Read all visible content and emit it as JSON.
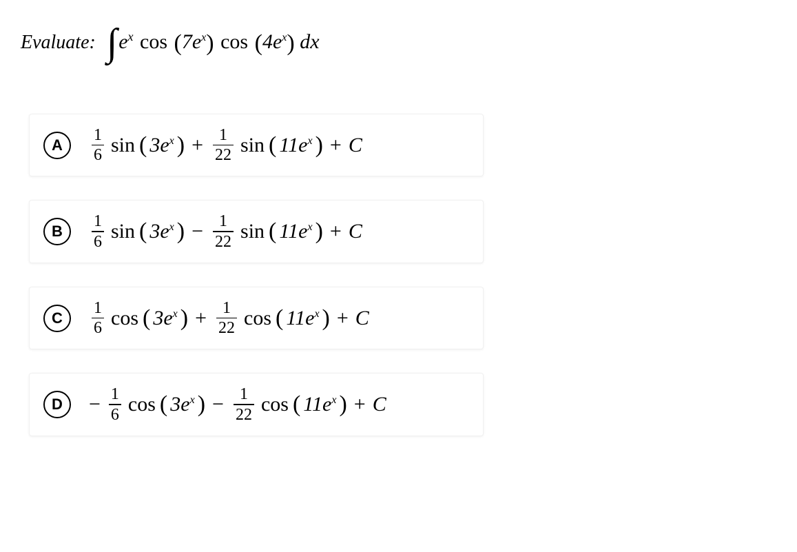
{
  "question": {
    "prompt_label": "Evaluate:",
    "integral_symbol": "∫",
    "integrand_e": "e",
    "integrand_exp": "x",
    "integrand_cos1": "cos",
    "integrand_arg1_coef": "7e",
    "integrand_arg1_exp": "x",
    "integrand_cos2": "cos",
    "integrand_arg2_coef": "4e",
    "integrand_arg2_exp": "x",
    "integrand_dx": "dx"
  },
  "options": [
    {
      "letter": "A",
      "leading_negative": false,
      "term1": {
        "num": "1",
        "den": "6",
        "fn": "sin",
        "coef": "3e",
        "exp": "x"
      },
      "op": "+",
      "term2": {
        "num": "1",
        "den": "22",
        "fn": "sin",
        "coef": "11e",
        "exp": "x"
      },
      "tail": "+ C"
    },
    {
      "letter": "B",
      "leading_negative": false,
      "term1": {
        "num": "1",
        "den": "6",
        "fn": "sin",
        "coef": "3e",
        "exp": "x"
      },
      "op": "−",
      "term2": {
        "num": "1",
        "den": "22",
        "fn": "sin",
        "coef": "11e",
        "exp": "x"
      },
      "tail": "+ C"
    },
    {
      "letter": "C",
      "leading_negative": false,
      "term1": {
        "num": "1",
        "den": "6",
        "fn": "cos",
        "coef": "3e",
        "exp": "x"
      },
      "op": "+",
      "term2": {
        "num": "1",
        "den": "22",
        "fn": "cos",
        "coef": "11e",
        "exp": "x"
      },
      "tail": "+ C"
    },
    {
      "letter": "D",
      "leading_negative": true,
      "leading_negative_symbol": "−",
      "term1": {
        "num": "1",
        "den": "6",
        "fn": "cos",
        "coef": "3e",
        "exp": "x"
      },
      "op": "−",
      "term2": {
        "num": "1",
        "den": "22",
        "fn": "cos",
        "coef": "11e",
        "exp": "x"
      },
      "tail": "+ C"
    }
  ],
  "style": {
    "background_color": "#ffffff",
    "text_color": "#000000",
    "option_border_color": "#f0f0f0",
    "option_shadow": "0 1px 3px rgba(0,0,0,0.06)",
    "prompt_fontsize": 28,
    "expr_fontsize": 30,
    "letter_circle_border": "#000000",
    "font_family": "Times New Roman, serif"
  }
}
